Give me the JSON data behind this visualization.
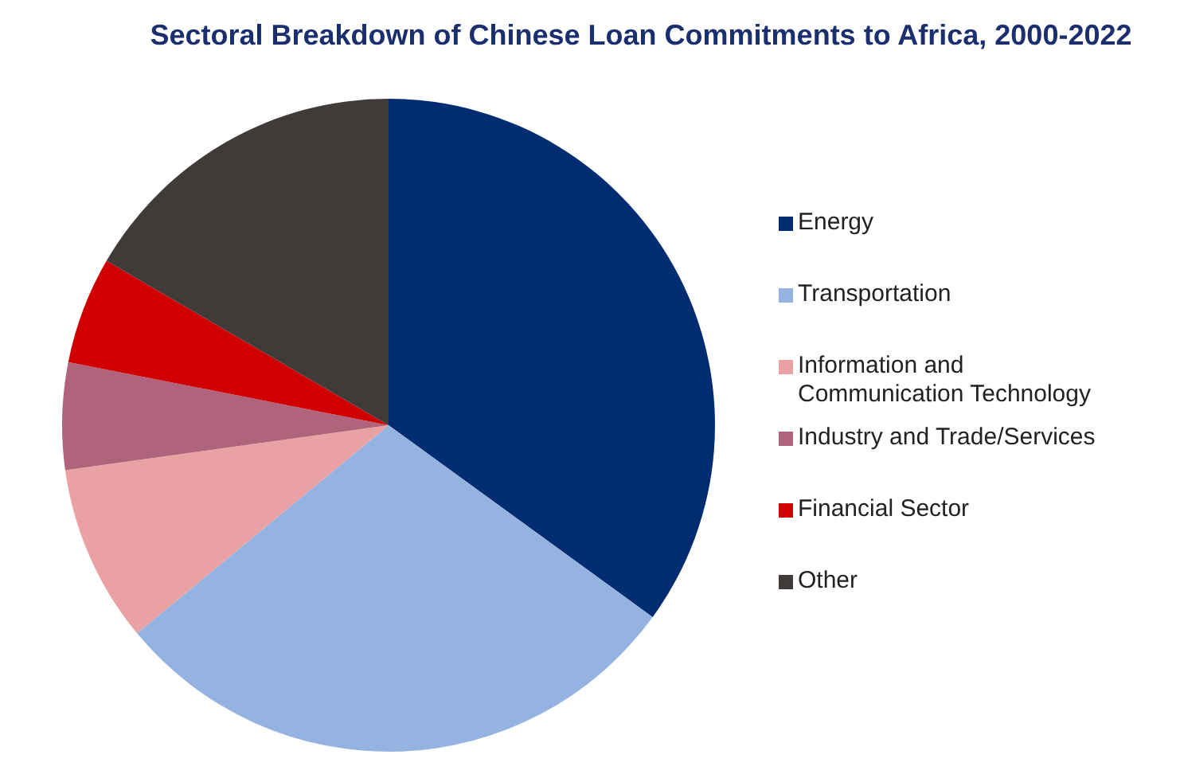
{
  "chart_data": {
    "type": "pie",
    "title": "Sectoral Breakdown of Chinese Loan Commitments to Africa, 2000-2022",
    "categories": [
      "Energy",
      "Transportation",
      "Information and Communication Technology",
      "Industry and Trade/Services",
      "Financial Sector",
      "Other"
    ],
    "values": [
      35,
      29,
      8.8,
      5.3,
      5.3,
      16.6
    ],
    "colors": [
      "#002d72",
      "#95b3e1",
      "#e9a1a3",
      "#b0647c",
      "#d00000",
      "#403a38"
    ],
    "legend": "right"
  }
}
